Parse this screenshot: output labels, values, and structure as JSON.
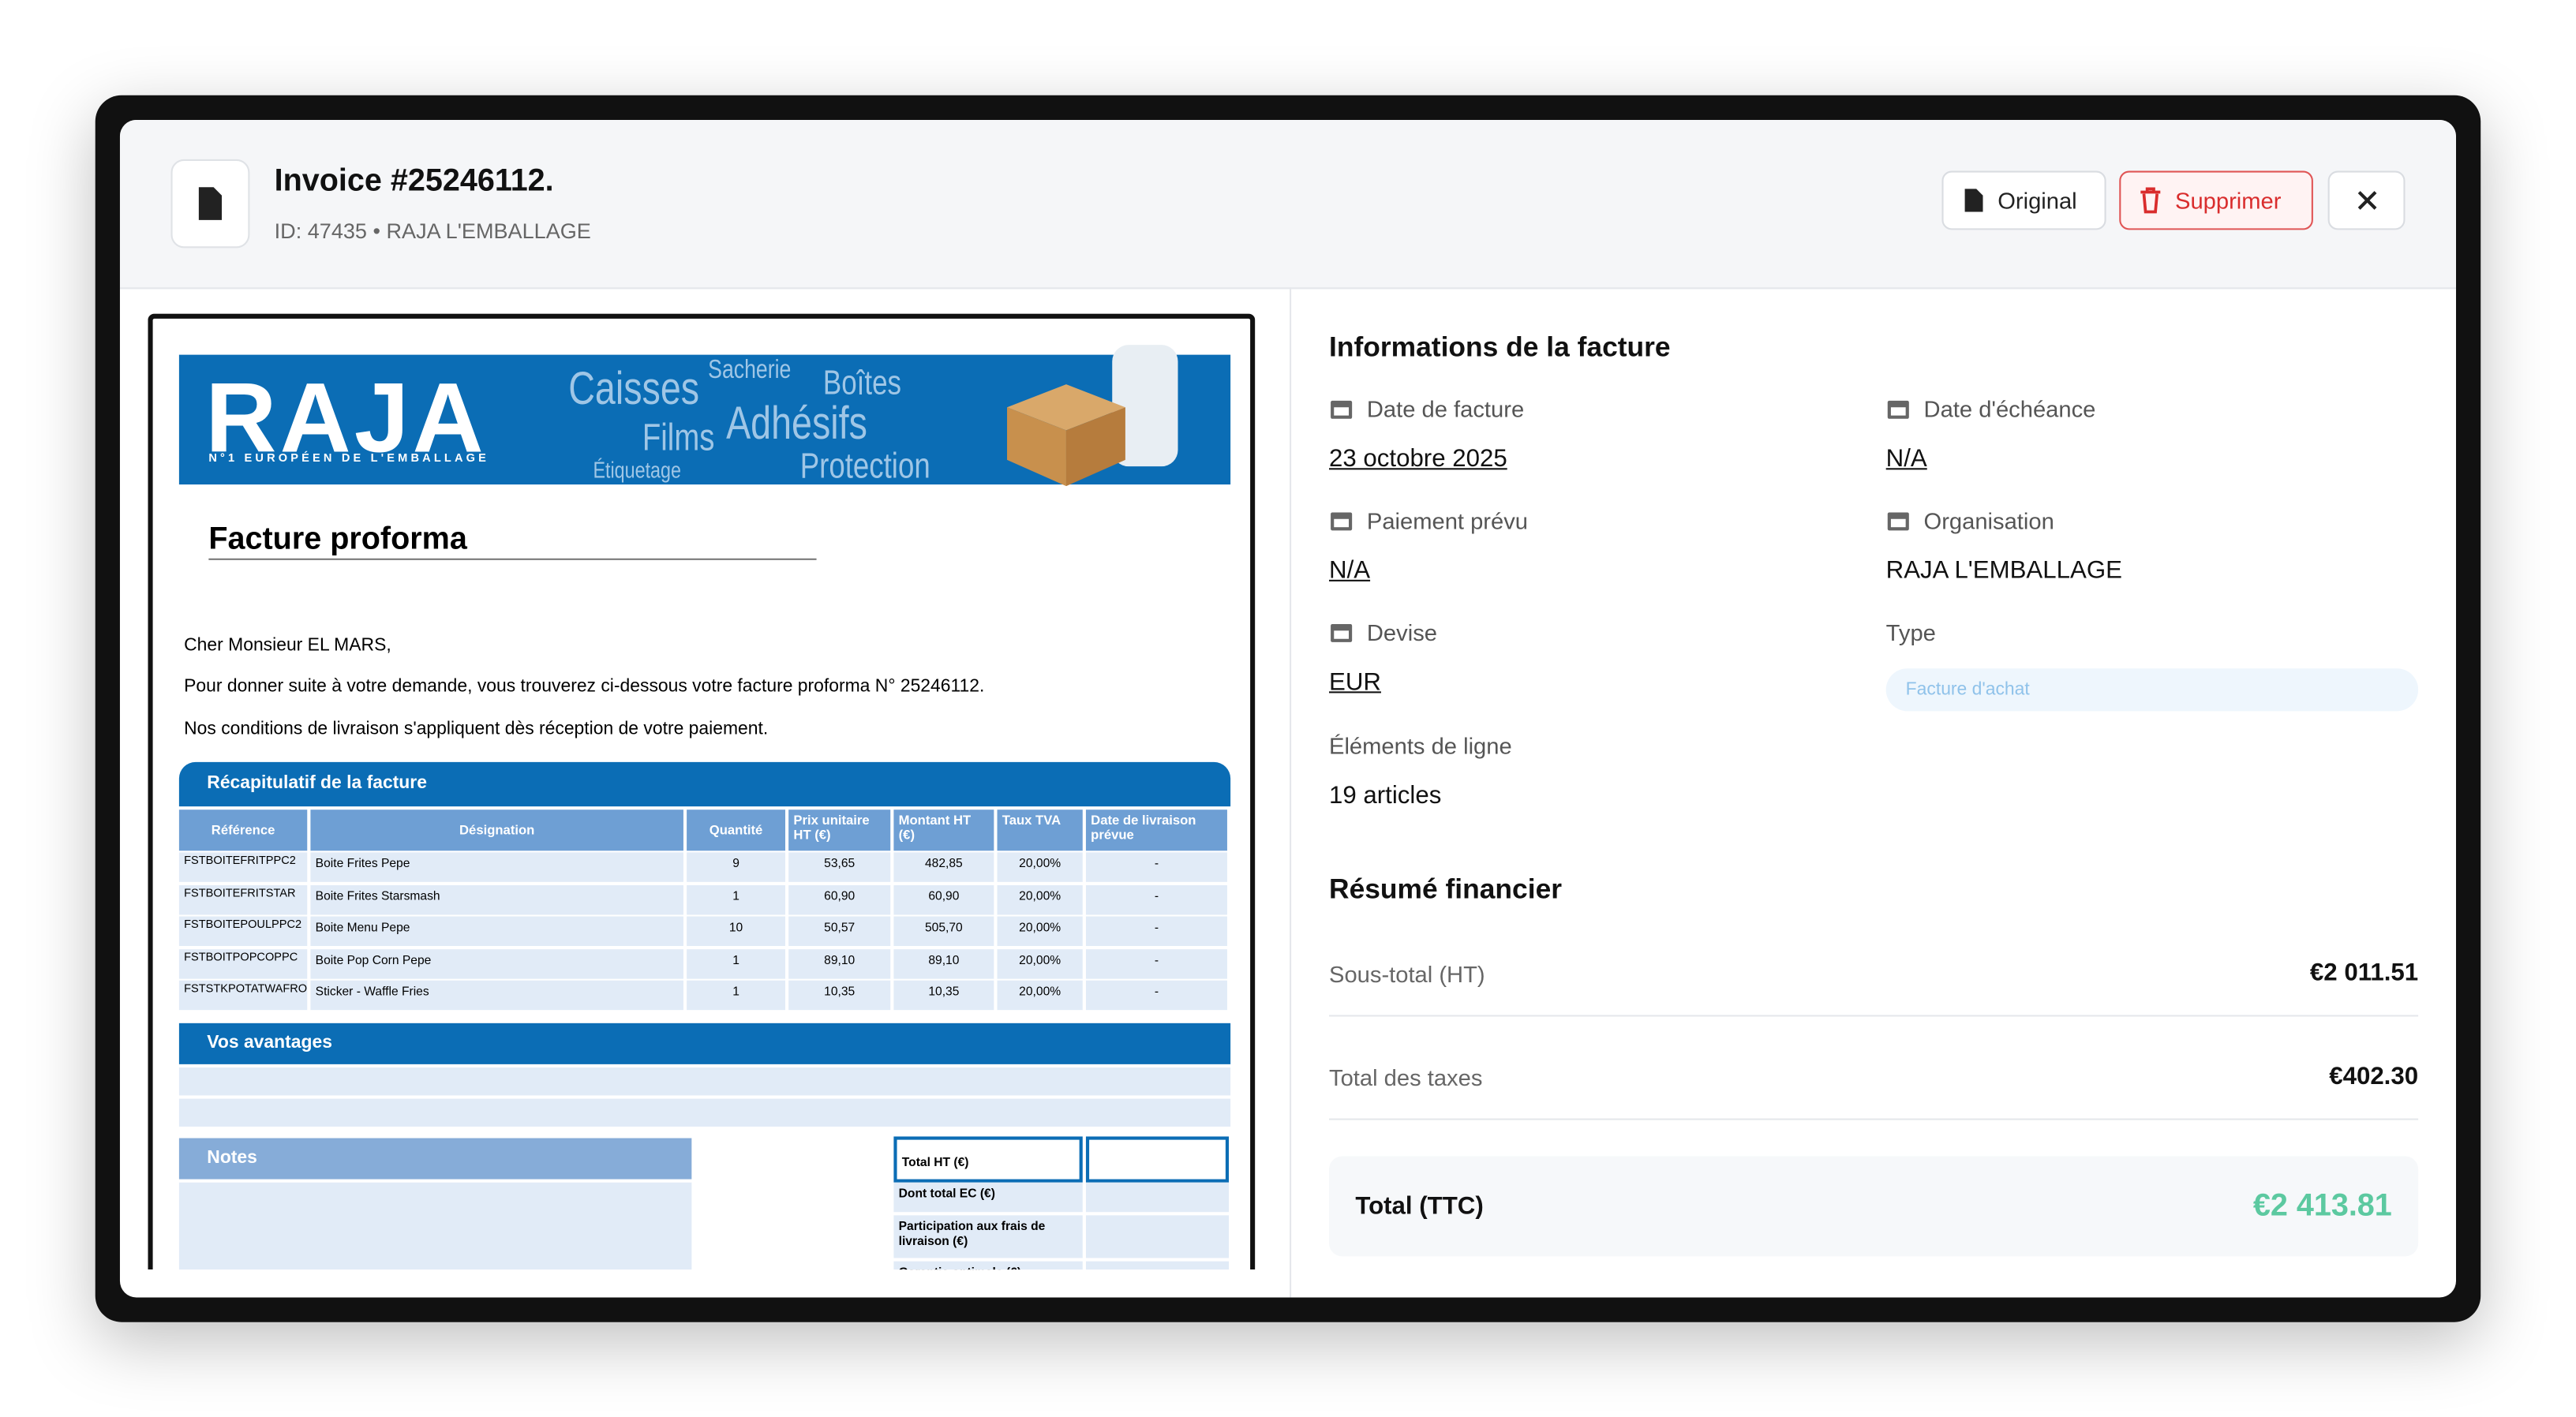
{
  "header": {
    "title": "Invoice #25246112.",
    "subtitle": "ID: 47435 • RAJA L'EMBALLAGE",
    "buttons": [
      "Original",
      "Supprimer"
    ]
  },
  "document": {
    "logo": "RAJA",
    "tagline": "N°1 EUROPÉEN DE L'EMBALLAGE",
    "banner_words": [
      "Caisses",
      "Sacherie",
      "Boîtes",
      "Films",
      "Adhésifs",
      "Étiquetage",
      "Protection"
    ],
    "heading": "Facture proforma",
    "paragraphs": [
      "Cher Monsieur EL MARS,",
      "Pour donner suite à votre demande, vous trouverez ci-dessous votre facture proforma N° 25246112.",
      "Nos conditions de livraison s'appliquent dès réception de votre paiement."
    ],
    "summary_title": "Récapitulatif de la facture",
    "columns": [
      "Référence",
      "Désignation",
      "Quantité",
      "Prix unitaire HT (€)",
      "Montant HT (€)",
      "Taux TVA",
      "Date de livraison prévue"
    ],
    "rows": [
      [
        "FSTBOITEFRITPPC2",
        "Boite Frites Pepe",
        "9",
        "53,65",
        "482,85",
        "20,00%",
        "-"
      ],
      [
        "FSTBOITEFRITSTAR",
        "Boite Frites Starsmash",
        "1",
        "60,90",
        "60,90",
        "20,00%",
        "-"
      ],
      [
        "FSTBOITEPOULPPC2",
        "Boite Menu Pepe",
        "10",
        "50,57",
        "505,70",
        "20,00%",
        "-"
      ],
      [
        "FSTBOITPOPCOPPC",
        "Boite Pop Corn Pepe",
        "1",
        "89,10",
        "89,10",
        "20,00%",
        "-"
      ],
      [
        "FSTSTKPOTATWAFROFI",
        "Sticker - Waffle Fries",
        "1",
        "10,35",
        "10,35",
        "20,00%",
        "-"
      ]
    ],
    "advantages_title": "Vos avantages",
    "notes_title": "Notes",
    "totals": [
      "Total HT (€)",
      "Dont total EC (€)",
      "Participation aux frais de livraison (€)",
      "Garantie optimale (€)"
    ]
  },
  "info": {
    "title": "Informations de la facture",
    "fields": [
      {
        "label": "Date de facture",
        "value": "23 octobre 2025"
      },
      {
        "label": "Date d'échéance",
        "value": "N/A"
      },
      {
        "label": "Paiement prévu",
        "value": "N/A"
      },
      {
        "label": "Organisation",
        "value": "RAJA L'EMBALLAGE"
      },
      {
        "label": "Devise",
        "value": "EUR"
      },
      {
        "label": "Type",
        "value": "Facture d'achat"
      },
      {
        "label": "Éléments de ligne",
        "value": "19 articles"
      }
    ]
  },
  "finance": {
    "title": "Résumé financier",
    "rows": [
      {
        "label": "Sous-total (HT)",
        "value": "€2 011.51"
      },
      {
        "label": "Total des taxes",
        "value": "€402.30"
      }
    ],
    "total": {
      "label": "Total (TTC)",
      "value": "€2 413.81"
    }
  }
}
